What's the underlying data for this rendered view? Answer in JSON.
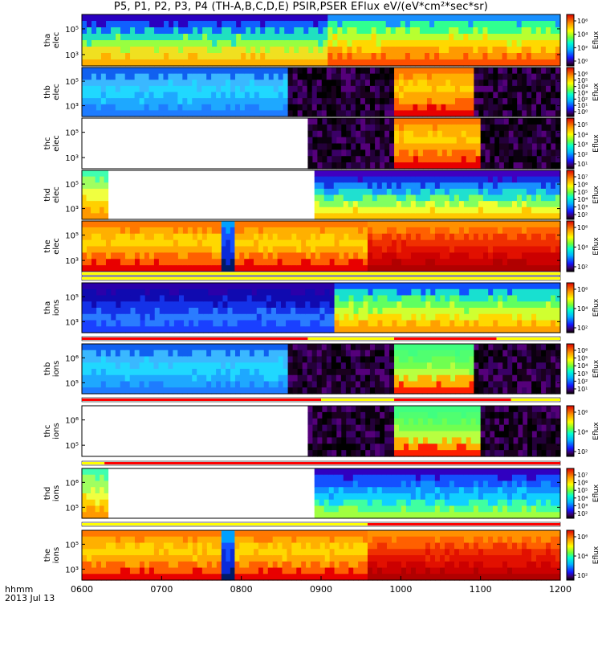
{
  "title": "P5, P1, P2, P3, P4 (TH-A,B,C,D,E) PSIR,PSER EFlux eV/(eV*cm²*sec*sr)",
  "time_axis": {
    "ticks": [
      "0600",
      "0700",
      "0800",
      "0900",
      "1000",
      "1100",
      "1200"
    ],
    "label_line1": "hhmm",
    "label_line2": "2013 Jul 13"
  },
  "colorbar_label": "Eflux",
  "chart_data": [
    {
      "type": "heatmap",
      "probe_label": [
        "tha",
        "elec"
      ],
      "yticks": [
        "10⁵",
        "10³"
      ],
      "cbar_ticks": [
        "10⁶",
        "10⁴",
        "10²",
        "10⁰"
      ],
      "regions": [
        {
          "from": "0600",
          "to": "0905",
          "level": "green-cyan-yellow"
        },
        {
          "from": "0905",
          "to": "1200",
          "level": "green-yellow-red"
        }
      ]
    },
    {
      "type": "heatmap",
      "probe_label": [
        "thb",
        "elec"
      ],
      "yticks": [
        "10⁵",
        "10³"
      ],
      "cbar_ticks": [
        "10⁶",
        "10⁵",
        "10⁴",
        "10³",
        "10²",
        "10¹",
        "10⁰"
      ],
      "regions": [
        {
          "from": "0600",
          "to": "0835",
          "level": "blue-cyan"
        },
        {
          "from": "0835",
          "to": "0955",
          "level": "dark"
        },
        {
          "from": "0955",
          "to": "1055",
          "level": "orange-yellow"
        },
        {
          "from": "1055",
          "to": "1200",
          "level": "dark"
        }
      ]
    },
    {
      "type": "heatmap",
      "probe_label": [
        "thc",
        "elec"
      ],
      "yticks": [
        "10⁵",
        "10³"
      ],
      "cbar_ticks": [
        "10⁵",
        "10⁴",
        "10³",
        "10²",
        "10¹"
      ],
      "regions": [
        {
          "from": "0600",
          "to": "0850",
          "level": "no-data"
        },
        {
          "from": "0850",
          "to": "0955",
          "level": "dark"
        },
        {
          "from": "0955",
          "to": "1100",
          "level": "orange-yellow"
        },
        {
          "from": "1100",
          "to": "1200",
          "level": "dark"
        }
      ]
    },
    {
      "type": "heatmap",
      "probe_label": [
        "thd",
        "elec"
      ],
      "yticks": [
        "10⁵",
        "10³"
      ],
      "cbar_ticks": [
        "10⁷",
        "10⁶",
        "10⁵",
        "10⁴",
        "10³",
        "10²"
      ],
      "regions": [
        {
          "from": "0600",
          "to": "0620",
          "level": "yellow"
        },
        {
          "from": "0620",
          "to": "0855",
          "level": "no-data"
        },
        {
          "from": "0855",
          "to": "1200",
          "level": "blue-green-yellow"
        }
      ]
    },
    {
      "type": "heatmap",
      "probe_label": [
        "the",
        "elec"
      ],
      "yticks": [
        "10⁵",
        "10³"
      ],
      "cbar_ticks": [
        "10⁶",
        "10⁴",
        "10²"
      ],
      "regions": [
        {
          "from": "0600",
          "to": "0745",
          "level": "orange-yellow"
        },
        {
          "from": "0745",
          "to": "0755",
          "level": "dark-blue"
        },
        {
          "from": "0755",
          "to": "0935",
          "level": "orange-yellow"
        },
        {
          "from": "0935",
          "to": "1200",
          "level": "red"
        }
      ]
    },
    {
      "type": "heatmap",
      "probe_label": [
        "tha",
        "ions"
      ],
      "yticks": [
        "10⁵",
        "10³"
      ],
      "cbar_ticks": [
        "10⁶",
        "10⁴",
        "10²"
      ],
      "regions": [
        {
          "from": "0600",
          "to": "0910",
          "level": "blue"
        },
        {
          "from": "0910",
          "to": "1200",
          "level": "green-yellow-orange"
        }
      ]
    },
    {
      "type": "heatmap",
      "probe_label": [
        "thb",
        "ions"
      ],
      "yticks": [
        "10⁶",
        "10⁵"
      ],
      "cbar_ticks": [
        "10⁶",
        "10⁵",
        "10⁴",
        "10³",
        "10²",
        "10¹"
      ],
      "regions": [
        {
          "from": "0600",
          "to": "0835",
          "level": "blue-cyan"
        },
        {
          "from": "0835",
          "to": "0955",
          "level": "dark"
        },
        {
          "from": "0955",
          "to": "1055",
          "level": "green-yellow"
        },
        {
          "from": "1055",
          "to": "1200",
          "level": "dark"
        }
      ]
    },
    {
      "type": "heatmap",
      "probe_label": [
        "thc",
        "ions"
      ],
      "yticks": [
        "10⁶",
        "10⁵"
      ],
      "cbar_ticks": [
        "10⁶",
        "10⁴",
        "10²"
      ],
      "regions": [
        {
          "from": "0600",
          "to": "0850",
          "level": "no-data"
        },
        {
          "from": "0850",
          "to": "0955",
          "level": "dark"
        },
        {
          "from": "0955",
          "to": "1100",
          "level": "green-yellow"
        },
        {
          "from": "1100",
          "to": "1200",
          "level": "dark"
        }
      ]
    },
    {
      "type": "heatmap",
      "probe_label": [
        "thd",
        "ions"
      ],
      "yticks": [
        "10⁶",
        "10⁵"
      ],
      "cbar_ticks": [
        "10⁷",
        "10⁶",
        "10⁵",
        "10⁴",
        "10³",
        "10²"
      ],
      "regions": [
        {
          "from": "0600",
          "to": "0620",
          "level": "yellow"
        },
        {
          "from": "0620",
          "to": "0855",
          "level": "no-data"
        },
        {
          "from": "0855",
          "to": "1200",
          "level": "blue-green"
        }
      ]
    },
    {
      "type": "heatmap",
      "probe_label": [
        "the",
        "ions"
      ],
      "yticks": [
        "10⁵",
        "10³"
      ],
      "cbar_ticks": [
        "10⁶",
        "10⁴",
        "10²"
      ],
      "regions": [
        {
          "from": "0600",
          "to": "0745",
          "level": "orange-yellow"
        },
        {
          "from": "0745",
          "to": "0755",
          "level": "dark-blue"
        },
        {
          "from": "0755",
          "to": "0935",
          "level": "orange-yellow"
        },
        {
          "from": "0935",
          "to": "1200",
          "level": "red"
        }
      ]
    }
  ]
}
